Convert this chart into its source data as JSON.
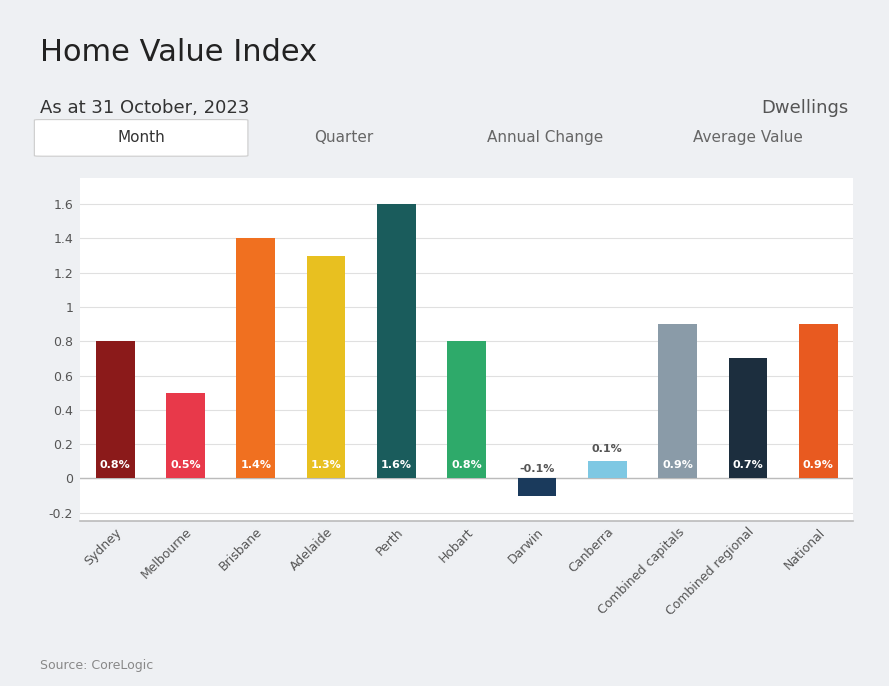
{
  "title": "Home Value Index",
  "subtitle": "As at 31 October, 2023",
  "right_label": "Dwellings",
  "source": "Source: CoreLogic",
  "tab_labels": [
    "Month",
    "Quarter",
    "Annual Change",
    "Average Value"
  ],
  "active_tab": 0,
  "categories": [
    "Sydney",
    "Melbourne",
    "Brisbane",
    "Adelaide",
    "Perth",
    "Hobart",
    "Darwin",
    "Canberra",
    "Combined capitals",
    "Combined regional",
    "National"
  ],
  "values": [
    0.8,
    0.5,
    1.4,
    1.3,
    1.6,
    0.8,
    -0.1,
    0.1,
    0.9,
    0.7,
    0.9
  ],
  "bar_colors": [
    "#8B1A1A",
    "#E8394A",
    "#F07020",
    "#E8C020",
    "#1A5C5C",
    "#2EAA6A",
    "#1A3A5C",
    "#7EC8E3",
    "#8A9BA8",
    "#1C2E3E",
    "#E85A20"
  ],
  "bar_labels": [
    "0.8%",
    "0.5%",
    "1.4%",
    "1.3%",
    "1.6%",
    "0.8%",
    "-0.1%",
    "0.1%",
    "0.9%",
    "0.7%",
    "0.9%"
  ],
  "label_in_bar": [
    true,
    true,
    true,
    true,
    true,
    true,
    false,
    false,
    true,
    true,
    true
  ],
  "label_colors_in": [
    "#ffffff",
    "#ffffff",
    "#ffffff",
    "#ffffff",
    "#ffffff",
    "#ffffff",
    "#555555",
    "#555555",
    "#ffffff",
    "#ffffff",
    "#ffffff"
  ],
  "ylim": [
    -0.25,
    1.75
  ],
  "yticks": [
    -0.2,
    0.0,
    0.2,
    0.4,
    0.6,
    0.8,
    1.0,
    1.2,
    1.4,
    1.6
  ],
  "background_color": "#eef0f3",
  "plot_bg_color": "#ffffff",
  "chart_border_color": "#d0d3d8",
  "title_fontsize": 22,
  "subtitle_fontsize": 13,
  "tab_fontsize": 11,
  "tab_bg": "#d4d6db",
  "active_tab_bg": "#ffffff",
  "active_tab_border": "#cccccc"
}
